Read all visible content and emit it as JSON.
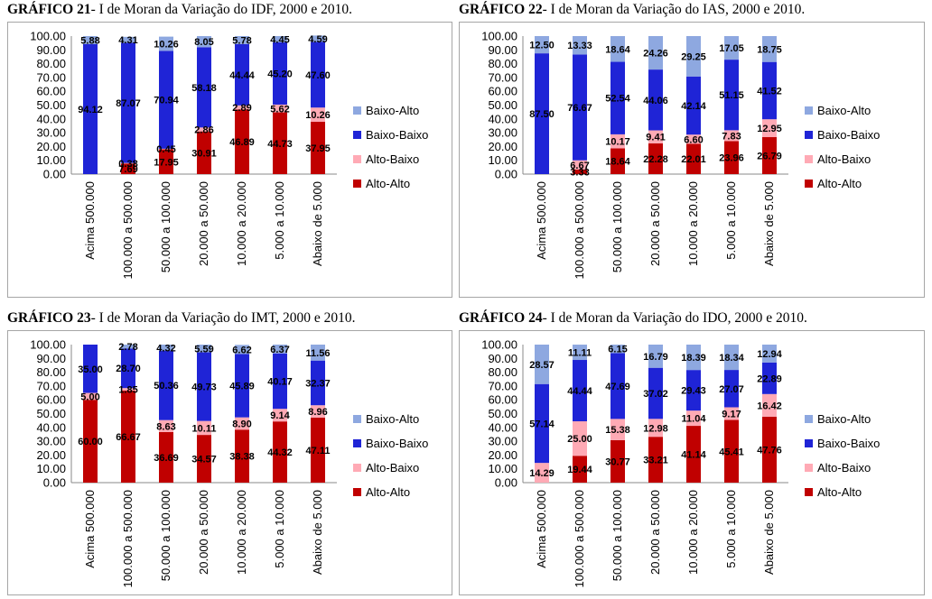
{
  "colors": {
    "Alto-Alto": "#c00000",
    "Alto-Baixo": "#ffaab5",
    "Baixo-Baixo": "#1f24d6",
    "Baixo-Alto": "#8ea8e0"
  },
  "chart_data": [
    {
      "type": "bar",
      "stacked": true,
      "title_num": "GRÁFICO 21",
      "title_text": "- I de Moran da Variação do IDF, 2000 e 2010.",
      "categories": [
        "Acima 500.000",
        "100.000 a 500.000",
        "50.000 a 100.000",
        "20.000 a 50.000",
        "10.000 a 20.000",
        "5.000 a 10.000",
        "Abaixo de 5.000"
      ],
      "yticks": [
        "0.00",
        "10.00",
        "20.00",
        "30.00",
        "40.00",
        "50.00",
        "60.00",
        "70.00",
        "80.00",
        "90.00",
        "100.00"
      ],
      "ylim": [
        0,
        100
      ],
      "legend": [
        "Baixo-Alto",
        "Baixo-Baixo",
        "Alto-Baixo",
        "Alto-Alto"
      ],
      "series": [
        {
          "name": "Alto-Alto",
          "values": [
            0,
            7.69,
            17.95,
            30.91,
            46.89,
            44.73,
            37.95
          ],
          "labels": [
            "",
            "7.69",
            "17.95",
            "30.91",
            "46.89",
            "44.73",
            "37.95"
          ]
        },
        {
          "name": "Alto-Baixo",
          "values": [
            0,
            0.38,
            0.45,
            2.86,
            2.89,
            5.62,
            10.26
          ],
          "labels": [
            "",
            "0.38",
            "0.45",
            "2.86",
            "2.89",
            "5.62",
            "10.26"
          ]
        },
        {
          "name": "Baixo-Baixo",
          "values": [
            94.12,
            87.07,
            70.94,
            58.18,
            44.44,
            45.2,
            47.6
          ],
          "labels": [
            "94.12",
            "87.07",
            "70.94",
            "58.18",
            "44.44",
            "45.20",
            "47.60"
          ]
        },
        {
          "name": "Baixo-Alto",
          "values": [
            5.88,
            4.31,
            10.26,
            8.05,
            5.78,
            4.45,
            4.59
          ],
          "labels": [
            "5.88",
            "4.31",
            "10.26",
            "8.05",
            "5.78",
            "4.45",
            "4.59"
          ]
        }
      ]
    },
    {
      "type": "bar",
      "stacked": true,
      "title_num": "GRÁFICO 22",
      "title_text": "- I de Moran da Variação do IAS, 2000 e 2010.",
      "categories": [
        "Acima 500.000",
        "100.000 a 500.000",
        "50.000 a 100.000",
        "20.000 a 50.000",
        "10.000 a 20.000",
        "5.000 a 10.000",
        "Abaixo de 5.000"
      ],
      "yticks": [
        "0.00",
        "10.00",
        "20.00",
        "30.00",
        "40.00",
        "50.00",
        "60.00",
        "70.00",
        "80.00",
        "90.00",
        "100.00"
      ],
      "ylim": [
        0,
        100
      ],
      "legend": [
        "Baixo-Alto",
        "Baixo-Baixo",
        "Alto-Baixo",
        "Alto-Alto"
      ],
      "series": [
        {
          "name": "Alto-Alto",
          "values": [
            0,
            3.33,
            18.64,
            22.28,
            22.01,
            23.96,
            26.79
          ],
          "labels": [
            "",
            "3.33",
            "18.64",
            "22.28",
            "22.01",
            "23.96",
            "26.79"
          ]
        },
        {
          "name": "Alto-Baixo",
          "values": [
            0,
            6.67,
            10.17,
            9.41,
            6.6,
            7.83,
            12.95
          ],
          "labels": [
            "",
            "6.67",
            "10.17",
            "9.41",
            "6.60",
            "7.83",
            "12.95"
          ]
        },
        {
          "name": "Baixo-Baixo",
          "values": [
            87.5,
            76.67,
            52.54,
            44.06,
            42.14,
            51.15,
            41.52
          ],
          "labels": [
            "87.50",
            "76.67",
            "52.54",
            "44.06",
            "42.14",
            "51.15",
            "41.52"
          ]
        },
        {
          "name": "Baixo-Alto",
          "values": [
            12.5,
            13.33,
            18.64,
            24.26,
            29.25,
            17.05,
            18.75
          ],
          "labels": [
            "12.50",
            "13.33",
            "18.64",
            "24.26",
            "29.25",
            "17.05",
            "18.75"
          ]
        }
      ]
    },
    {
      "type": "bar",
      "stacked": true,
      "title_num": "GRÁFICO 23",
      "title_text": "- I de Moran da Variação do IMT, 2000 e 2010.",
      "categories": [
        "Acima 500.000",
        "100.000 a 500.000",
        "50.000 a 100.000",
        "20.000 a 50.000",
        "10.000 a 20.000",
        "5.000 a 10.000",
        "Abaixo de 5.000"
      ],
      "yticks": [
        "0.00",
        "10.00",
        "20.00",
        "30.00",
        "40.00",
        "50.00",
        "60.00",
        "70.00",
        "80.00",
        "90.00",
        "100.00"
      ],
      "ylim": [
        0,
        100
      ],
      "legend": [
        "Baixo-Alto",
        "Baixo-Baixo",
        "Alto-Baixo",
        "Alto-Alto"
      ],
      "series": [
        {
          "name": "Alto-Alto",
          "values": [
            60.0,
            66.67,
            36.69,
            34.57,
            38.38,
            44.32,
            47.11
          ],
          "labels": [
            "60.00",
            "66.67",
            "36.69",
            "34.57",
            "38.38",
            "44.32",
            "47.11"
          ]
        },
        {
          "name": "Alto-Baixo",
          "values": [
            5.0,
            1.85,
            8.63,
            10.11,
            8.9,
            9.14,
            8.96
          ],
          "labels": [
            "5.00",
            "1.85",
            "8.63",
            "10.11",
            "8.90",
            "9.14",
            "8.96"
          ]
        },
        {
          "name": "Baixo-Baixo",
          "values": [
            35.0,
            28.7,
            50.36,
            49.73,
            45.89,
            40.17,
            32.37
          ],
          "labels": [
            "35.00",
            "28.70",
            "50.36",
            "49.73",
            "45.89",
            "40.17",
            "32.37"
          ]
        },
        {
          "name": "Baixo-Alto",
          "values": [
            0,
            2.78,
            4.32,
            5.59,
            6.62,
            6.37,
            11.56
          ],
          "labels": [
            "",
            "2.78",
            "4.32",
            "5.59",
            "6.62",
            "6.37",
            "11.56"
          ]
        }
      ]
    },
    {
      "type": "bar",
      "stacked": true,
      "title_num": "GRÁFICO 24",
      "title_text": "- I de Moran da Variação do IDO, 2000 e 2010.",
      "categories": [
        "Acima 500.000",
        "100.000 a 500.000",
        "50.000 a 100.000",
        "20.000 a 50.000",
        "10.000 a 20.000",
        "5.000 a 10.000",
        "Abaixo de 5.000"
      ],
      "yticks": [
        "0.00",
        "10.00",
        "20.00",
        "30.00",
        "40.00",
        "50.00",
        "60.00",
        "70.00",
        "80.00",
        "90.00",
        "100.00"
      ],
      "ylim": [
        0,
        100
      ],
      "legend": [
        "Baixo-Alto",
        "Baixo-Baixo",
        "Alto-Baixo",
        "Alto-Alto"
      ],
      "series": [
        {
          "name": "Alto-Alto",
          "values": [
            0,
            19.44,
            30.77,
            33.21,
            41.14,
            45.41,
            47.76
          ],
          "labels": [
            "",
            "19.44",
            "30.77",
            "33.21",
            "41.14",
            "45.41",
            "47.76"
          ]
        },
        {
          "name": "Alto-Baixo",
          "values": [
            14.29,
            25.0,
            15.38,
            12.98,
            11.04,
            9.17,
            16.42
          ],
          "labels": [
            "14.29",
            "25.00",
            "15.38",
            "12.98",
            "11.04",
            "9.17",
            "16.42"
          ]
        },
        {
          "name": "Baixo-Baixo",
          "values": [
            57.14,
            44.44,
            47.69,
            37.02,
            29.43,
            27.07,
            22.89
          ],
          "labels": [
            "57.14",
            "44.44",
            "47.69",
            "37.02",
            "29.43",
            "27.07",
            "22.89"
          ]
        },
        {
          "name": "Baixo-Alto",
          "values": [
            28.57,
            11.11,
            6.15,
            16.79,
            18.39,
            18.34,
            12.94
          ],
          "labels": [
            "28.57",
            "11.11",
            "6.15",
            "16.79",
            "18.39",
            "18.34",
            "12.94"
          ]
        }
      ]
    }
  ]
}
